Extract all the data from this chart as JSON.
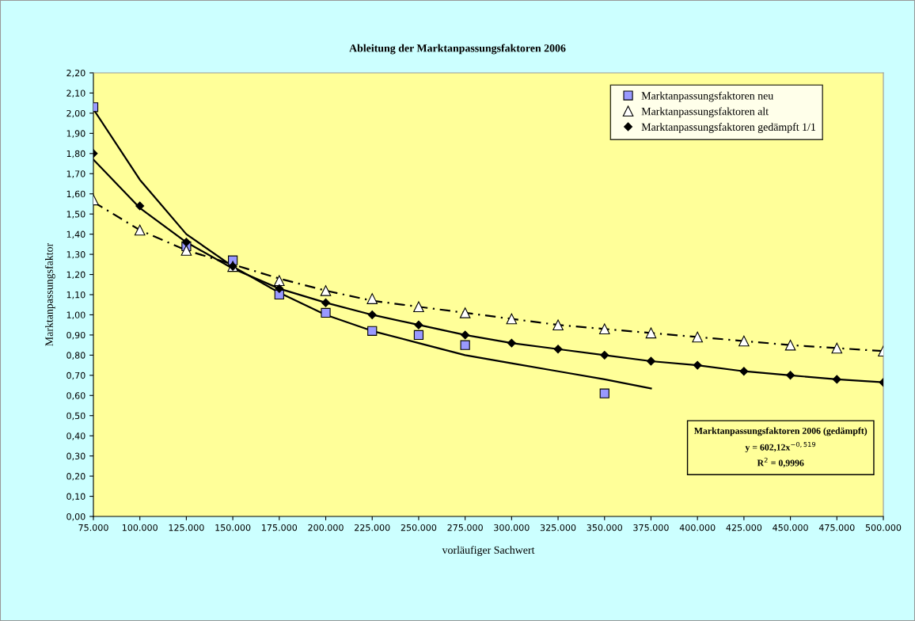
{
  "chart_data": {
    "type": "scatter",
    "title": "Ableitung der Marktanpassungsfaktoren 2006",
    "xlabel": "vorläufiger Sachwert",
    "ylabel": "Marktanpassungsfaktor",
    "xlim": [
      75000,
      500000
    ],
    "ylim": [
      0,
      2.2
    ],
    "xticks": [
      {
        "value": 75000,
        "label": "75.000"
      },
      {
        "value": 100000,
        "label": "100.000"
      },
      {
        "value": 125000,
        "label": "125.000"
      },
      {
        "value": 150000,
        "label": "150.000"
      },
      {
        "value": 175000,
        "label": "175.000"
      },
      {
        "value": 200000,
        "label": "200.000"
      },
      {
        "value": 225000,
        "label": "225.000"
      },
      {
        "value": 250000,
        "label": "250.000"
      },
      {
        "value": 275000,
        "label": "275.000"
      },
      {
        "value": 300000,
        "label": "300.000"
      },
      {
        "value": 325000,
        "label": "325.000"
      },
      {
        "value": 350000,
        "label": "350.000"
      },
      {
        "value": 375000,
        "label": "375.000"
      },
      {
        "value": 400000,
        "label": "400.000"
      },
      {
        "value": 425000,
        "label": "425.000"
      },
      {
        "value": 450000,
        "label": "450.000"
      },
      {
        "value": 475000,
        "label": "475.000"
      },
      {
        "value": 500000,
        "label": "500.000"
      }
    ],
    "yticks": [
      {
        "value": 0,
        "label": "0,00"
      },
      {
        "value": 0.1,
        "label": "0,10"
      },
      {
        "value": 0.2,
        "label": "0,20"
      },
      {
        "value": 0.3,
        "label": "0,30"
      },
      {
        "value": 0.4,
        "label": "0,40"
      },
      {
        "value": 0.5,
        "label": "0,50"
      },
      {
        "value": 0.6,
        "label": "0,60"
      },
      {
        "value": 0.7,
        "label": "0,70"
      },
      {
        "value": 0.8,
        "label": "0,80"
      },
      {
        "value": 0.9,
        "label": "0,90"
      },
      {
        "value": 1.0,
        "label": "1,00"
      },
      {
        "value": 1.1,
        "label": "1,10"
      },
      {
        "value": 1.2,
        "label": "1,20"
      },
      {
        "value": 1.3,
        "label": "1,30"
      },
      {
        "value": 1.4,
        "label": "1,40"
      },
      {
        "value": 1.5,
        "label": "1,50"
      },
      {
        "value": 1.6,
        "label": "1,60"
      },
      {
        "value": 1.7,
        "label": "1,70"
      },
      {
        "value": 1.8,
        "label": "1,80"
      },
      {
        "value": 1.9,
        "label": "1,90"
      },
      {
        "value": 2.0,
        "label": "2,00"
      },
      {
        "value": 2.1,
        "label": "2,10"
      },
      {
        "value": 2.2,
        "label": "2,20"
      }
    ],
    "grid": false,
    "legend": "top right",
    "annotations": [
      "Marktanpassungsfaktoren 2006 (gedämpft)",
      "y = 602,12x$^{−0,519}$",
      "R$^{2}$ = 0,9996"
    ],
    "series": [
      {
        "type": "line",
        "color": "#000000",
        "line_style": "solid",
        "marker": "none",
        "x": [
          75000,
          100000,
          125000,
          150000,
          175000,
          200000,
          225000,
          250000,
          275000,
          300000,
          325000,
          350000,
          375000
        ],
        "values": [
          2.02,
          1.67,
          1.4,
          1.24,
          1.11,
          1.0,
          0.92,
          0.86,
          0.8,
          0.76,
          0.72,
          0.68,
          0.635
        ]
      },
      {
        "type": "line",
        "color": "#000000",
        "line_style": "dashed",
        "marker": "none",
        "x": [
          75000,
          100000,
          125000,
          150000,
          175000,
          200000,
          225000,
          250000,
          275000,
          300000,
          325000,
          350000,
          375000,
          400000,
          425000,
          450000,
          475000,
          500000
        ],
        "values": [
          1.56,
          1.42,
          1.32,
          1.25,
          1.18,
          1.12,
          1.07,
          1.04,
          1.01,
          0.98,
          0.95,
          0.93,
          0.91,
          0.89,
          0.87,
          0.85,
          0.835,
          0.82
        ]
      },
      {
        "type": "line",
        "color": "#000000",
        "line_style": "solid",
        "marker": "none",
        "x": [
          75000,
          100000,
          125000,
          150000,
          175000,
          200000,
          225000,
          250000,
          275000,
          300000,
          325000,
          350000,
          375000,
          400000,
          425000,
          450000,
          475000,
          500000
        ],
        "values": [
          1.77,
          1.53,
          1.36,
          1.23,
          1.13,
          1.06,
          1.0,
          0.95,
          0.9,
          0.86,
          0.83,
          0.8,
          0.77,
          0.75,
          0.72,
          0.7,
          0.68,
          0.665
        ]
      },
      {
        "name": "Marktanpassungsfaktoren neu",
        "color": "#9999ff",
        "marker": "square",
        "x": [
          75000,
          125000,
          150000,
          175000,
          200000,
          225000,
          250000,
          275000,
          350000
        ],
        "values": [
          2.03,
          1.34,
          1.27,
          1.1,
          1.01,
          0.92,
          0.9,
          0.85,
          0.61
        ]
      },
      {
        "name": "Marktanpassungsfaktoren alt",
        "color": "#ffffff",
        "marker": "triangle",
        "x": [
          75000,
          100000,
          125000,
          150000,
          175000,
          200000,
          225000,
          250000,
          275000,
          300000,
          325000,
          350000,
          375000,
          400000,
          425000,
          450000,
          475000,
          500000
        ],
        "values": [
          1.57,
          1.42,
          1.32,
          1.24,
          1.17,
          1.12,
          1.08,
          1.04,
          1.01,
          0.98,
          0.95,
          0.93,
          0.91,
          0.89,
          0.87,
          0.85,
          0.835,
          0.82
        ]
      },
      {
        "name": "Marktanpassungsfaktoren gedämpft 1/1",
        "color": "#000000",
        "marker": "diamond",
        "x": [
          75000,
          100000,
          125000,
          150000,
          175000,
          200000,
          225000,
          250000,
          275000,
          300000,
          325000,
          350000,
          375000,
          400000,
          425000,
          450000,
          475000,
          500000
        ],
        "values": [
          1.8,
          1.54,
          1.36,
          1.24,
          1.13,
          1.06,
          1.0,
          0.95,
          0.9,
          0.86,
          0.83,
          0.8,
          0.77,
          0.75,
          0.72,
          0.7,
          0.68,
          0.665
        ]
      }
    ]
  }
}
